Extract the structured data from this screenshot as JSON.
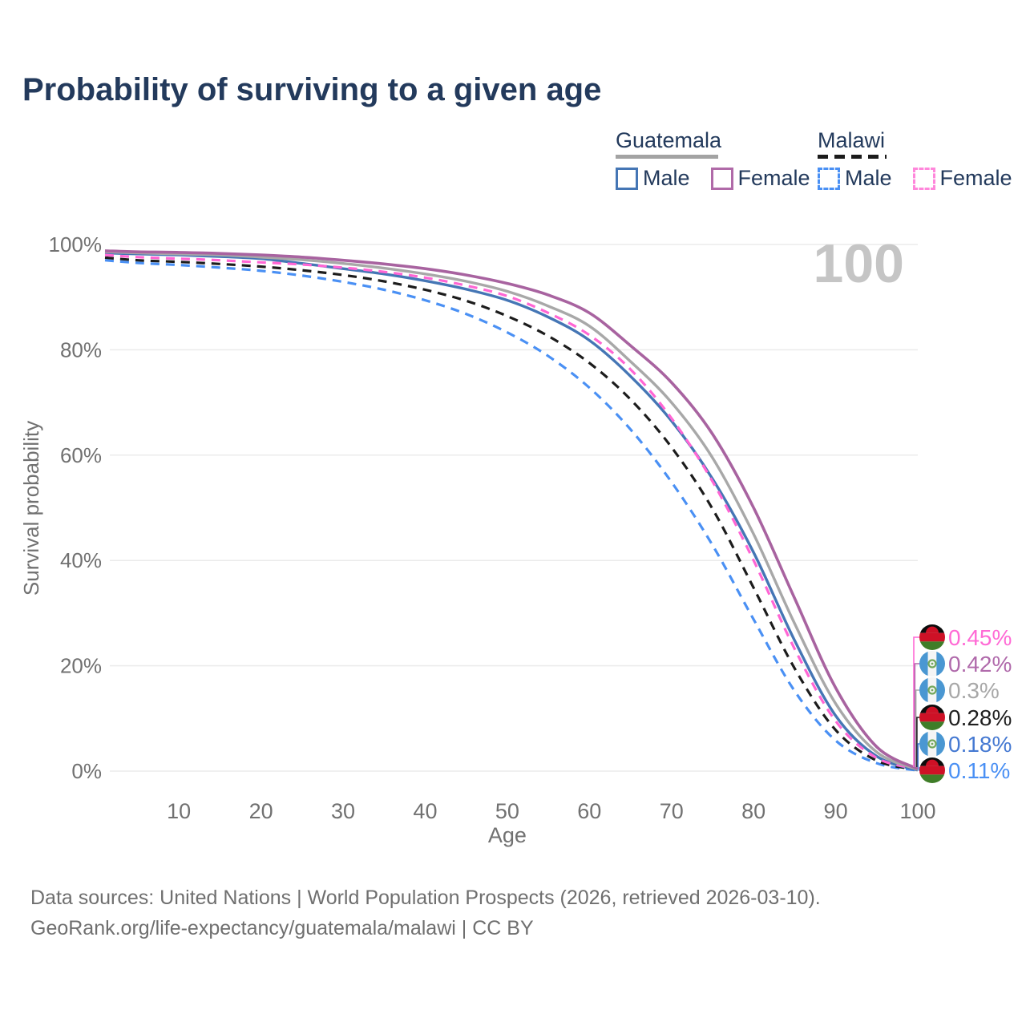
{
  "title": "Probability of surviving to a given age",
  "watermark_age": "100",
  "legend": {
    "groups": [
      {
        "name": "Guatemala",
        "line_style": "solid",
        "line_color": "#a3a3a3",
        "items": [
          {
            "label": "Male",
            "color": "#4576b5",
            "dashed": false
          },
          {
            "label": "Female",
            "color": "#b06aa8",
            "dashed": false
          }
        ]
      },
      {
        "name": "Malawi",
        "line_style": "dashed",
        "line_color": "#1b1b1b",
        "items": [
          {
            "label": "Male",
            "color": "#4a90f4",
            "dashed": true
          },
          {
            "label": "Female",
            "color": "#ff87db",
            "dashed": true
          }
        ]
      }
    ]
  },
  "axes": {
    "y_label": "Survival probability",
    "x_label": "Age",
    "y_ticks": [
      {
        "label": "100%",
        "value": 100
      },
      {
        "label": "80%",
        "value": 80
      },
      {
        "label": "60%",
        "value": 60
      },
      {
        "label": "40%",
        "value": 40
      },
      {
        "label": "20%",
        "value": 20
      },
      {
        "label": "0%",
        "value": 0
      }
    ],
    "x_ticks": [
      10,
      20,
      30,
      40,
      50,
      60,
      70,
      80,
      90,
      100
    ],
    "x_range": [
      1,
      100
    ],
    "y_range": [
      0,
      100
    ],
    "grid": "horizontal-only"
  },
  "chart_data": {
    "type": "line",
    "title": "Probability of surviving to a given age",
    "xlabel": "Age",
    "ylabel": "Survival probability",
    "x": [
      1,
      5,
      10,
      15,
      20,
      25,
      30,
      35,
      40,
      45,
      50,
      55,
      60,
      65,
      70,
      75,
      80,
      85,
      90,
      95,
      100
    ],
    "series": [
      {
        "id": "guatemala_female",
        "name": "Guatemala Female",
        "color": "#a863a0",
        "dashed": false,
        "width": 3.6,
        "z": 6,
        "values": [
          98.8,
          98.6,
          98.5,
          98.3,
          98.0,
          97.6,
          97.0,
          96.3,
          95.4,
          94.2,
          92.6,
          90.4,
          87.0,
          80.8,
          73.8,
          64.0,
          50.0,
          32.8,
          15.8,
          4.6,
          0.42
        ]
      },
      {
        "id": "guatemala_all",
        "name": "Guatemala",
        "color": "#a8a8a8",
        "dashed": false,
        "width": 3.4,
        "z": 5,
        "values": [
          98.6,
          98.4,
          98.2,
          98.0,
          97.6,
          97.1,
          96.4,
          95.5,
          94.4,
          93.0,
          91.1,
          88.3,
          84.5,
          77.8,
          70.0,
          59.5,
          45.0,
          28.0,
          12.8,
          3.6,
          0.3
        ]
      },
      {
        "id": "malawi_female",
        "name": "Malawi Female",
        "color": "#ff66d4",
        "dashed": true,
        "width": 3.2,
        "z": 4,
        "values": [
          98.0,
          97.6,
          97.3,
          97.0,
          96.6,
          96.2,
          95.6,
          94.8,
          93.7,
          92.2,
          90.2,
          87.0,
          82.8,
          76.3,
          67.0,
          55.0,
          40.0,
          23.2,
          9.5,
          2.5,
          0.45
        ]
      },
      {
        "id": "guatemala_male",
        "name": "Guatemala Male",
        "color": "#4576b5",
        "dashed": false,
        "width": 3.4,
        "z": 3,
        "values": [
          98.4,
          98.2,
          98.0,
          97.7,
          97.3,
          96.4,
          95.4,
          94.4,
          93.1,
          91.5,
          89.4,
          86.2,
          81.8,
          75.0,
          66.5,
          55.5,
          41.5,
          24.8,
          10.5,
          2.8,
          0.18
        ]
      },
      {
        "id": "malawi_all",
        "name": "Malawi",
        "color": "#1c1c1c",
        "dashed": true,
        "width": 3.2,
        "z": 2,
        "values": [
          97.5,
          97.0,
          96.7,
          96.3,
          95.8,
          95.1,
          94.2,
          93.0,
          91.4,
          89.3,
          86.4,
          82.6,
          77.5,
          70.6,
          61.5,
          49.8,
          34.8,
          19.5,
          7.8,
          2.0,
          0.28
        ]
      },
      {
        "id": "malawi_male",
        "name": "Malawi Male",
        "color": "#4a90f4",
        "dashed": true,
        "width": 3.2,
        "z": 1,
        "values": [
          97.0,
          96.5,
          96.1,
          95.6,
          95.0,
          94.1,
          92.9,
          91.4,
          89.4,
          86.8,
          83.3,
          78.8,
          72.8,
          64.9,
          54.9,
          42.9,
          28.8,
          15.2,
          5.8,
          1.5,
          0.11
        ]
      }
    ]
  },
  "end_labels": [
    {
      "series_id": "malawi_female",
      "value": "0.45%",
      "color": "#ff6ad5",
      "flag": "malawi"
    },
    {
      "series_id": "guatemala_female",
      "value": "0.42%",
      "color": "#b06aab",
      "flag": "guatemala"
    },
    {
      "series_id": "guatemala_all",
      "value": "0.3%",
      "color": "#a8a8a8",
      "flag": "guatemala"
    },
    {
      "series_id": "malawi_all",
      "value": "0.28%",
      "color": "#1f1f1f",
      "flag": "malawi"
    },
    {
      "series_id": "guatemala_male",
      "value": "0.18%",
      "color": "#4579d2",
      "flag": "guatemala"
    },
    {
      "series_id": "malawi_male",
      "value": "0.11%",
      "color": "#4a90f4",
      "flag": "malawi"
    }
  ],
  "flag_colors": {
    "malawi": {
      "black": "#0c0c0c",
      "red": "#ce1126",
      "green": "#3f7d28"
    },
    "guatemala": {
      "blue": "#4a97d2",
      "white": "#f5f5f5",
      "wreath": "#74a85c"
    }
  },
  "footer": {
    "line1": "Data sources: United Nations | World Population Prospects (2026, retrieved 2026-03-10).",
    "line2": "GeoRank.org/life-expectancy/guatemala/malawi | CC BY"
  }
}
